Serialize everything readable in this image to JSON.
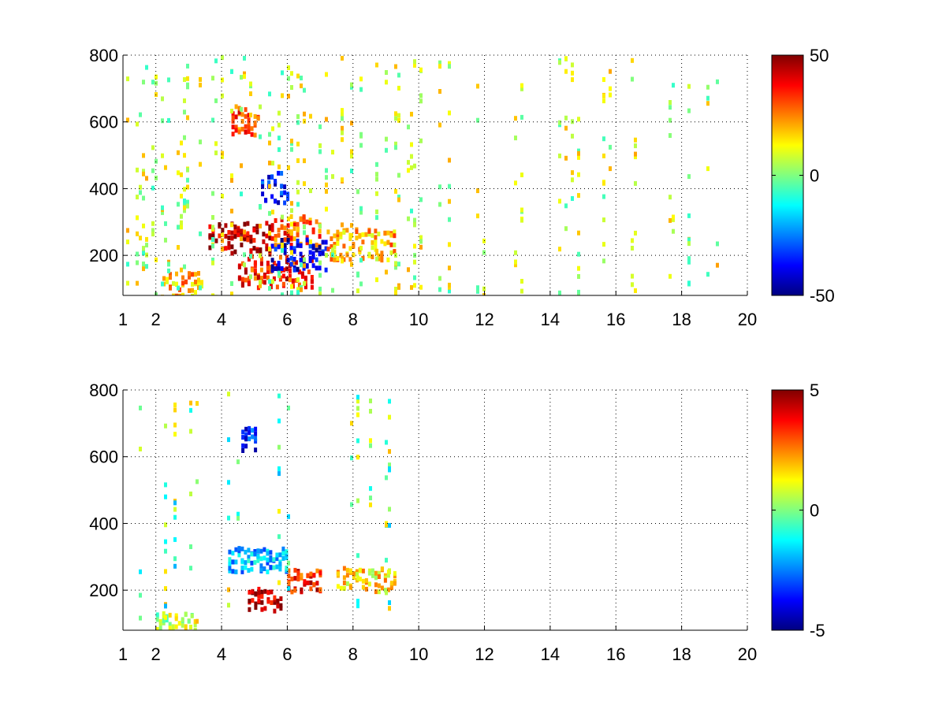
{
  "chart_data": [
    {
      "type": "heatmap",
      "title": "",
      "xlabel": "",
      "ylabel": "",
      "xlim": [
        1,
        20
      ],
      "ylim": [
        80,
        800
      ],
      "x_ticks": [
        1,
        2,
        4,
        6,
        8,
        10,
        12,
        14,
        16,
        18,
        20
      ],
      "y_ticks": [
        200,
        400,
        600,
        800
      ],
      "grid": true,
      "colormap": "jet",
      "colorbar": {
        "min": -50,
        "max": 50,
        "ticks": [
          -50,
          0,
          50
        ],
        "placement": "right"
      },
      "features": [
        {
          "x_range": [
            4.5,
            6.8
          ],
          "y": 150,
          "value": 35
        },
        {
          "x_range": [
            3.6,
            5.5
          ],
          "y": 250,
          "value": 45
        },
        {
          "x_range": [
            5.5,
            7.0
          ],
          "y": 270,
          "value": 30
        },
        {
          "x_range": [
            5.5,
            7.2
          ],
          "y": 200,
          "value": -40
        },
        {
          "x_range": [
            7.2,
            9.3
          ],
          "y": 230,
          "value": 20
        },
        {
          "x_range": [
            4.3,
            5.1
          ],
          "y": 600,
          "value": 30
        },
        {
          "x_range": [
            5.2,
            6.0
          ],
          "y": 400,
          "value": -35
        },
        {
          "x_range": [
            2.2,
            3.4
          ],
          "y": 100,
          "value": 20
        }
      ]
    },
    {
      "type": "heatmap",
      "title": "",
      "xlabel": "",
      "ylabel": "",
      "xlim": [
        1,
        20
      ],
      "ylim": [
        80,
        800
      ],
      "x_ticks": [
        1,
        2,
        4,
        6,
        8,
        10,
        12,
        14,
        16,
        18,
        20
      ],
      "y_ticks": [
        200,
        400,
        600,
        800
      ],
      "grid": true,
      "colormap": "jet",
      "colorbar": {
        "min": -5,
        "max": 5,
        "ticks": [
          -5,
          0,
          5
        ],
        "placement": "right"
      },
      "features": [
        {
          "x_range": [
            4.8,
            5.8
          ],
          "y": 170,
          "value": 4.5
        },
        {
          "x_range": [
            6.0,
            7.0
          ],
          "y": 230,
          "value": 3.5
        },
        {
          "x_range": [
            4.2,
            6.0
          ],
          "y": 290,
          "value": -2.0
        },
        {
          "x_range": [
            4.6,
            5.0
          ],
          "y": 650,
          "value": -3.5
        },
        {
          "x_range": [
            7.5,
            9.3
          ],
          "y": 230,
          "value": 1.5
        },
        {
          "x_range": [
            2.0,
            3.2
          ],
          "y": 95,
          "value": 0.5
        }
      ]
    }
  ]
}
